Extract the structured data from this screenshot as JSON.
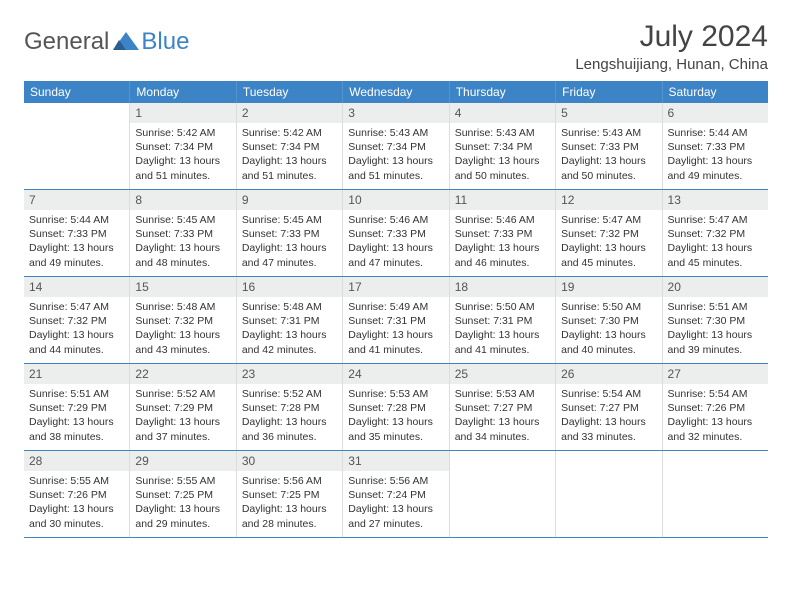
{
  "logo": {
    "general": "General",
    "blue": "Blue"
  },
  "title": "July 2024",
  "location": "Lengshuijiang, Hunan, China",
  "colors": {
    "header_bg": "#3d84c6",
    "header_text": "#ffffff",
    "daynum_bg": "#eceded",
    "text": "#333333",
    "border": "#3d84c6"
  },
  "day_names": [
    "Sunday",
    "Monday",
    "Tuesday",
    "Wednesday",
    "Thursday",
    "Friday",
    "Saturday"
  ],
  "weeks": [
    [
      null,
      {
        "d": "1",
        "sr": "5:42 AM",
        "ss": "7:34 PM",
        "dl": "13 hours and 51 minutes."
      },
      {
        "d": "2",
        "sr": "5:42 AM",
        "ss": "7:34 PM",
        "dl": "13 hours and 51 minutes."
      },
      {
        "d": "3",
        "sr": "5:43 AM",
        "ss": "7:34 PM",
        "dl": "13 hours and 51 minutes."
      },
      {
        "d": "4",
        "sr": "5:43 AM",
        "ss": "7:34 PM",
        "dl": "13 hours and 50 minutes."
      },
      {
        "d": "5",
        "sr": "5:43 AM",
        "ss": "7:33 PM",
        "dl": "13 hours and 50 minutes."
      },
      {
        "d": "6",
        "sr": "5:44 AM",
        "ss": "7:33 PM",
        "dl": "13 hours and 49 minutes."
      }
    ],
    [
      {
        "d": "7",
        "sr": "5:44 AM",
        "ss": "7:33 PM",
        "dl": "13 hours and 49 minutes."
      },
      {
        "d": "8",
        "sr": "5:45 AM",
        "ss": "7:33 PM",
        "dl": "13 hours and 48 minutes."
      },
      {
        "d": "9",
        "sr": "5:45 AM",
        "ss": "7:33 PM",
        "dl": "13 hours and 47 minutes."
      },
      {
        "d": "10",
        "sr": "5:46 AM",
        "ss": "7:33 PM",
        "dl": "13 hours and 47 minutes."
      },
      {
        "d": "11",
        "sr": "5:46 AM",
        "ss": "7:33 PM",
        "dl": "13 hours and 46 minutes."
      },
      {
        "d": "12",
        "sr": "5:47 AM",
        "ss": "7:32 PM",
        "dl": "13 hours and 45 minutes."
      },
      {
        "d": "13",
        "sr": "5:47 AM",
        "ss": "7:32 PM",
        "dl": "13 hours and 45 minutes."
      }
    ],
    [
      {
        "d": "14",
        "sr": "5:47 AM",
        "ss": "7:32 PM",
        "dl": "13 hours and 44 minutes."
      },
      {
        "d": "15",
        "sr": "5:48 AM",
        "ss": "7:32 PM",
        "dl": "13 hours and 43 minutes."
      },
      {
        "d": "16",
        "sr": "5:48 AM",
        "ss": "7:31 PM",
        "dl": "13 hours and 42 minutes."
      },
      {
        "d": "17",
        "sr": "5:49 AM",
        "ss": "7:31 PM",
        "dl": "13 hours and 41 minutes."
      },
      {
        "d": "18",
        "sr": "5:50 AM",
        "ss": "7:31 PM",
        "dl": "13 hours and 41 minutes."
      },
      {
        "d": "19",
        "sr": "5:50 AM",
        "ss": "7:30 PM",
        "dl": "13 hours and 40 minutes."
      },
      {
        "d": "20",
        "sr": "5:51 AM",
        "ss": "7:30 PM",
        "dl": "13 hours and 39 minutes."
      }
    ],
    [
      {
        "d": "21",
        "sr": "5:51 AM",
        "ss": "7:29 PM",
        "dl": "13 hours and 38 minutes."
      },
      {
        "d": "22",
        "sr": "5:52 AM",
        "ss": "7:29 PM",
        "dl": "13 hours and 37 minutes."
      },
      {
        "d": "23",
        "sr": "5:52 AM",
        "ss": "7:28 PM",
        "dl": "13 hours and 36 minutes."
      },
      {
        "d": "24",
        "sr": "5:53 AM",
        "ss": "7:28 PM",
        "dl": "13 hours and 35 minutes."
      },
      {
        "d": "25",
        "sr": "5:53 AM",
        "ss": "7:27 PM",
        "dl": "13 hours and 34 minutes."
      },
      {
        "d": "26",
        "sr": "5:54 AM",
        "ss": "7:27 PM",
        "dl": "13 hours and 33 minutes."
      },
      {
        "d": "27",
        "sr": "5:54 AM",
        "ss": "7:26 PM",
        "dl": "13 hours and 32 minutes."
      }
    ],
    [
      {
        "d": "28",
        "sr": "5:55 AM",
        "ss": "7:26 PM",
        "dl": "13 hours and 30 minutes."
      },
      {
        "d": "29",
        "sr": "5:55 AM",
        "ss": "7:25 PM",
        "dl": "13 hours and 29 minutes."
      },
      {
        "d": "30",
        "sr": "5:56 AM",
        "ss": "7:25 PM",
        "dl": "13 hours and 28 minutes."
      },
      {
        "d": "31",
        "sr": "5:56 AM",
        "ss": "7:24 PM",
        "dl": "13 hours and 27 minutes."
      },
      null,
      null,
      null
    ]
  ],
  "labels": {
    "sunrise": "Sunrise:",
    "sunset": "Sunset:",
    "daylight": "Daylight:"
  }
}
